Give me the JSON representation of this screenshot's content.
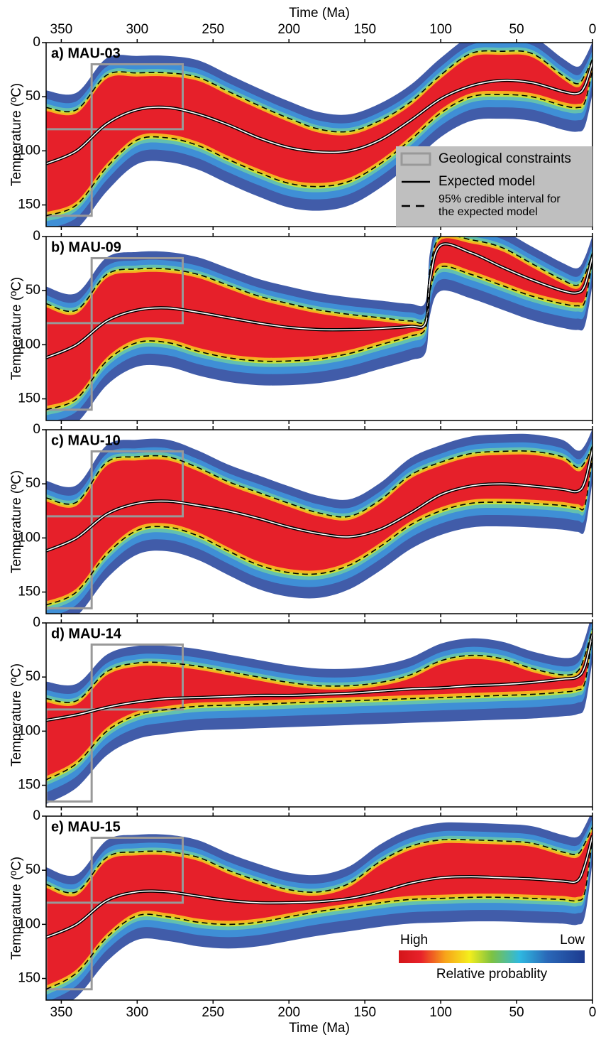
{
  "chart_data": [
    {
      "type": "line",
      "title": "a) MAU-03",
      "xlabel": "Time (Ma)",
      "xlabel_side": "top",
      "ylabel": "Temperature (ºC)",
      "xlim": [
        360,
        0
      ],
      "xticks": [
        350,
        300,
        250,
        200,
        150,
        100,
        50,
        0
      ],
      "ylim": [
        0,
        170
      ],
      "yticks": [
        0,
        50,
        100,
        150
      ],
      "x": [
        360,
        340,
        320,
        300,
        280,
        260,
        240,
        220,
        200,
        180,
        160,
        140,
        120,
        100,
        80,
        60,
        40,
        20,
        10,
        5,
        0
      ],
      "series": [
        {
          "name": "Expected model",
          "color": "#000000",
          "values": [
            112,
            100,
            75,
            62,
            60,
            66,
            76,
            88,
            97,
            101,
            100,
            90,
            72,
            52,
            40,
            35,
            37,
            45,
            47,
            40,
            18
          ]
        },
        {
          "name": "95% credible interval for the expected model",
          "color": "#000000",
          "dashed": true,
          "values": [
            60,
            62,
            30,
            28,
            28,
            32,
            45,
            58,
            70,
            80,
            82,
            72,
            55,
            30,
            10,
            8,
            10,
            30,
            38,
            30,
            15
          ]
        },
        {
          "color": "#000000",
          "dashed": true,
          "values": [
            160,
            150,
            115,
            90,
            88,
            95,
            108,
            120,
            130,
            133,
            128,
            112,
            90,
            65,
            50,
            48,
            50,
            58,
            60,
            55,
            25
          ]
        }
      ],
      "constraints": {
        "label": "Geological constraints",
        "color": "#999999",
        "boxes": [
          {
            "x": [
              330,
              270
            ],
            "y": [
              20,
              80
            ]
          },
          {
            "x": [
              360,
              330
            ],
            "y": [
              80,
              160
            ]
          }
        ]
      }
    },
    {
      "type": "line",
      "title": "b) MAU-09",
      "ylabel": "Temperature (ºC)",
      "xlim": [
        360,
        0
      ],
      "xticks": [
        350,
        300,
        250,
        200,
        150,
        100,
        50,
        0
      ],
      "ylim": [
        0,
        170
      ],
      "yticks": [
        0,
        50,
        100,
        150
      ],
      "x": [
        360,
        340,
        320,
        300,
        280,
        260,
        240,
        220,
        200,
        180,
        160,
        140,
        120,
        110,
        107,
        100,
        80,
        60,
        40,
        20,
        10,
        5,
        0
      ],
      "series": [
        {
          "color": "#000000",
          "values": [
            112,
            100,
            78,
            68,
            66,
            70,
            75,
            80,
            84,
            86,
            86,
            85,
            83,
            80,
            40,
            8,
            15,
            28,
            40,
            50,
            52,
            45,
            18
          ]
        },
        {
          "color": "#000000",
          "dashed": true,
          "values": [
            62,
            68,
            35,
            30,
            30,
            35,
            45,
            55,
            62,
            68,
            72,
            75,
            78,
            76,
            30,
            0,
            3,
            10,
            25,
            40,
            45,
            35,
            15
          ]
        },
        {
          "color": "#000000",
          "dashed": true,
          "values": [
            160,
            150,
            115,
            98,
            98,
            106,
            112,
            115,
            115,
            113,
            108,
            100,
            92,
            85,
            50,
            28,
            35,
            45,
            55,
            62,
            64,
            60,
            22
          ]
        }
      ],
      "constraints": {
        "color": "#999999",
        "boxes": [
          {
            "x": [
              330,
              270
            ],
            "y": [
              20,
              80
            ]
          },
          {
            "x": [
              360,
              330
            ],
            "y": [
              80,
              160
            ]
          }
        ]
      }
    },
    {
      "type": "line",
      "title": "c) MAU-10",
      "ylabel": "Temperature (ºC)",
      "xlim": [
        360,
        0
      ],
      "xticks": [
        350,
        300,
        250,
        200,
        150,
        100,
        50,
        0
      ],
      "ylim": [
        0,
        170
      ],
      "yticks": [
        0,
        50,
        100,
        150
      ],
      "x": [
        360,
        340,
        320,
        300,
        280,
        260,
        240,
        220,
        200,
        180,
        160,
        140,
        120,
        100,
        80,
        60,
        40,
        20,
        10,
        5,
        0
      ],
      "series": [
        {
          "color": "#000000",
          "values": [
            112,
            100,
            78,
            68,
            66,
            70,
            75,
            82,
            90,
            96,
            99,
            92,
            77,
            60,
            52,
            50,
            52,
            55,
            57,
            48,
            18
          ]
        },
        {
          "color": "#000000",
          "dashed": true,
          "values": [
            63,
            67,
            30,
            25,
            25,
            35,
            48,
            58,
            68,
            77,
            80,
            65,
            42,
            30,
            22,
            20,
            20,
            25,
            35,
            30,
            15
          ]
        },
        {
          "color": "#000000",
          "dashed": true,
          "values": [
            162,
            150,
            115,
            93,
            90,
            98,
            112,
            125,
            132,
            133,
            125,
            108,
            88,
            75,
            68,
            67,
            68,
            70,
            72,
            70,
            25
          ]
        }
      ],
      "constraints": {
        "color": "#999999",
        "boxes": [
          {
            "x": [
              330,
              270
            ],
            "y": [
              20,
              80
            ]
          },
          {
            "x": [
              360,
              330
            ],
            "y": [
              80,
              165
            ]
          }
        ]
      }
    },
    {
      "type": "line",
      "title": "d) MAU-14",
      "ylabel": "Temperature (ºC)",
      "xlim": [
        360,
        0
      ],
      "xticks": [
        350,
        300,
        250,
        200,
        150,
        100,
        50,
        0
      ],
      "ylim": [
        0,
        170
      ],
      "yticks": [
        0,
        50,
        100,
        150
      ],
      "x": [
        360,
        340,
        320,
        300,
        280,
        260,
        240,
        220,
        200,
        180,
        160,
        140,
        120,
        100,
        80,
        60,
        40,
        20,
        10,
        5,
        0
      ],
      "series": [
        {
          "color": "#000000",
          "values": [
            90,
            85,
            78,
            73,
            70,
            69,
            68,
            67,
            67,
            66,
            65,
            63,
            61,
            60,
            58,
            57,
            55,
            52,
            50,
            40,
            10
          ]
        },
        {
          "color": "#000000",
          "dashed": true,
          "values": [
            70,
            72,
            45,
            37,
            37,
            40,
            45,
            50,
            55,
            58,
            58,
            55,
            48,
            35,
            30,
            33,
            42,
            48,
            45,
            30,
            5
          ]
        },
        {
          "color": "#000000",
          "dashed": true,
          "values": [
            145,
            130,
            100,
            85,
            80,
            77,
            76,
            75,
            74,
            73,
            72,
            71,
            70,
            69,
            68,
            67,
            66,
            64,
            62,
            55,
            12
          ]
        }
      ],
      "constraints": {
        "color": "#999999",
        "boxes": [
          {
            "x": [
              330,
              270
            ],
            "y": [
              20,
              80
            ]
          },
          {
            "x": [
              360,
              330
            ],
            "y": [
              80,
              165
            ]
          }
        ]
      }
    },
    {
      "type": "line",
      "title": "e) MAU-15",
      "xlabel": "Time (Ma)",
      "xlabel_side": "bottom",
      "ylabel": "Temperature (ºC)",
      "xlim": [
        360,
        0
      ],
      "xticks": [
        350,
        300,
        250,
        200,
        150,
        100,
        50,
        0
      ],
      "ylim": [
        0,
        170
      ],
      "yticks": [
        0,
        50,
        100,
        150
      ],
      "x": [
        360,
        340,
        320,
        300,
        280,
        260,
        240,
        220,
        200,
        180,
        160,
        140,
        120,
        100,
        80,
        60,
        40,
        20,
        10,
        5,
        0
      ],
      "series": [
        {
          "color": "#000000",
          "values": [
            112,
            100,
            78,
            70,
            70,
            74,
            78,
            80,
            80,
            79,
            76,
            70,
            62,
            57,
            56,
            57,
            58,
            60,
            60,
            45,
            18
          ]
        },
        {
          "color": "#000000",
          "dashed": true,
          "values": [
            63,
            70,
            38,
            33,
            33,
            38,
            50,
            60,
            68,
            70,
            62,
            42,
            28,
            22,
            22,
            23,
            25,
            33,
            35,
            25,
            10
          ]
        },
        {
          "color": "#000000",
          "dashed": true,
          "values": [
            160,
            145,
            112,
            92,
            93,
            98,
            100,
            98,
            93,
            88,
            84,
            80,
            77,
            76,
            75,
            75,
            76,
            77,
            78,
            70,
            20
          ]
        }
      ],
      "constraints": {
        "color": "#999999",
        "boxes": [
          {
            "x": [
              330,
              270
            ],
            "y": [
              20,
              80
            ]
          },
          {
            "x": [
              360,
              330
            ],
            "y": [
              80,
              160
            ]
          }
        ]
      },
      "colorbar": {
        "high": "High",
        "low": "Low",
        "label": "Relative probablity"
      }
    }
  ]
}
